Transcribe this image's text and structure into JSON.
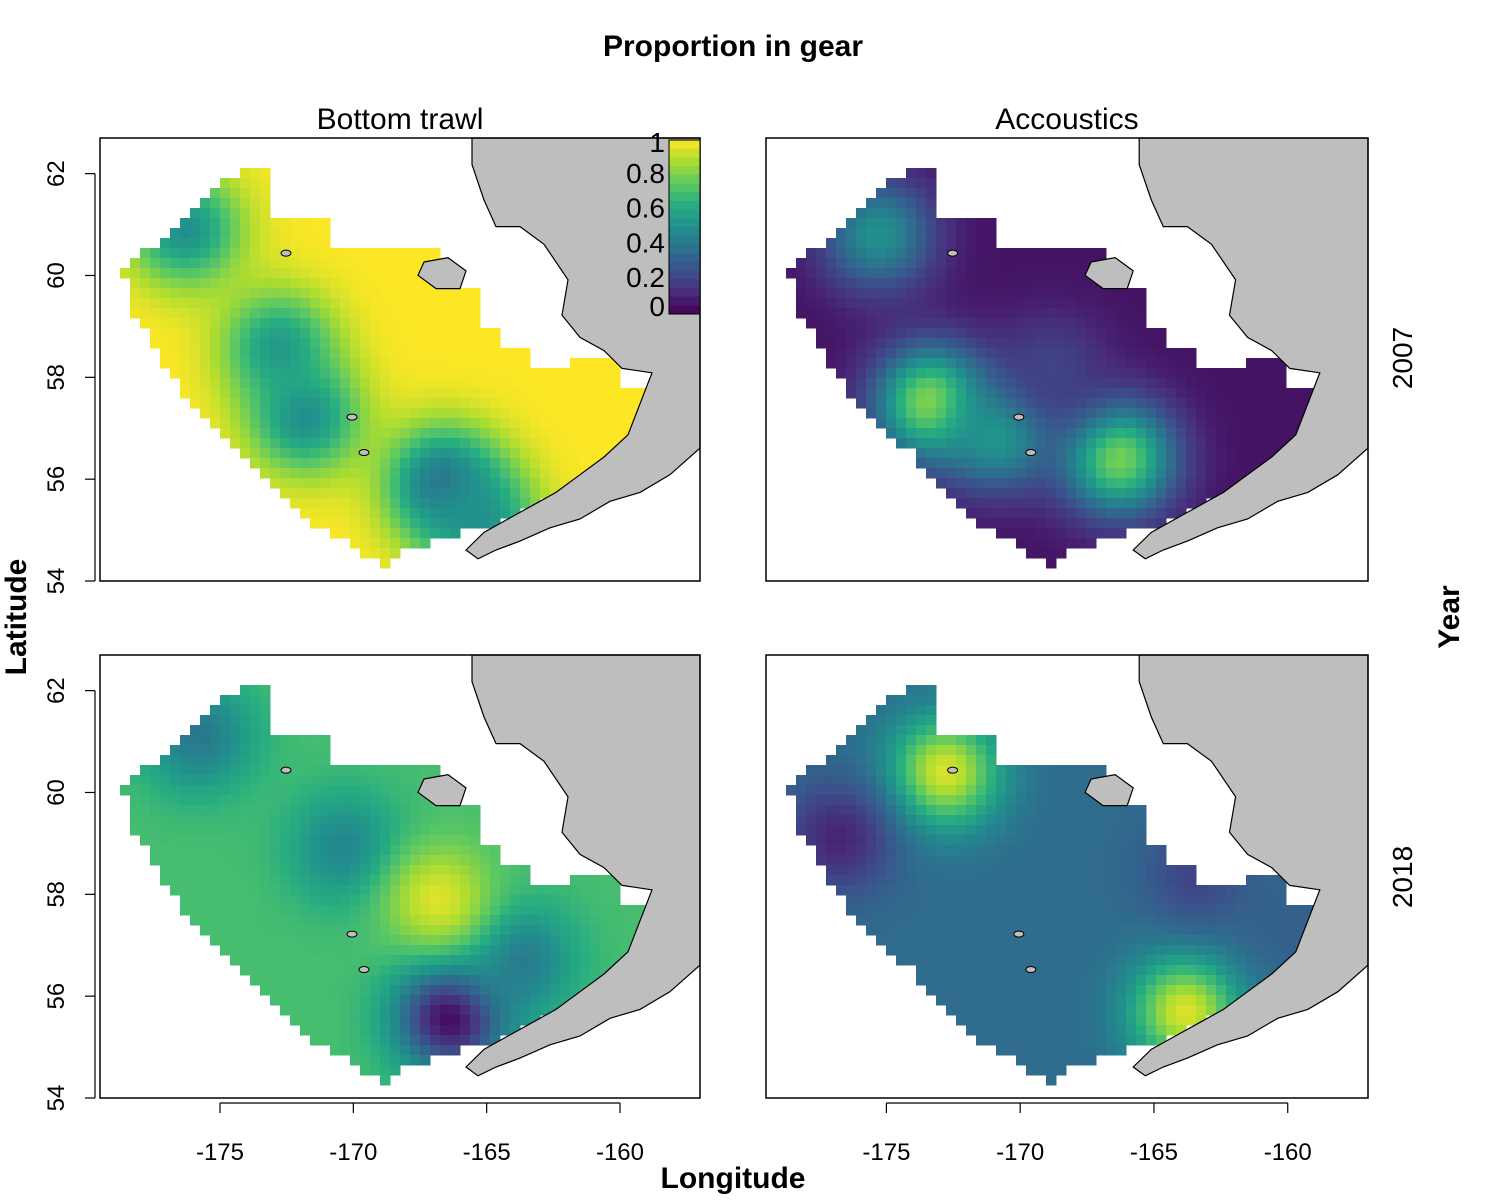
{
  "title": "Proportion in gear",
  "columns": [
    "Bottom trawl",
    "Accoustics"
  ],
  "rows": [
    "2007",
    "2018"
  ],
  "xlabel": "Longitude",
  "ylabel": "Latitude",
  "row_axis_label": "Year",
  "x_ticks": [
    "-175",
    "-170",
    "-165",
    "-160"
  ],
  "y_ticks": [
    "54",
    "56",
    "58",
    "60",
    "62"
  ],
  "legend_ticks": [
    "1",
    "0.8",
    "0.6",
    "0.4",
    "0.2",
    "0"
  ],
  "colors": {
    "land": "#bebebe",
    "palette": [
      "#440154",
      "#472d7b",
      "#3b528b",
      "#2c728e",
      "#21908d",
      "#27ad81",
      "#5cc863",
      "#aadc32",
      "#fde725"
    ]
  },
  "chart_data": {
    "type": "heatmap",
    "title": "Proportion in gear",
    "xlabel": "Longitude",
    "ylabel": "Latitude",
    "xlim": [
      -179.5,
      -157.0
    ],
    "ylim": [
      54,
      62.7
    ],
    "value_range": [
      0,
      1
    ],
    "colorbar_ticks": [
      0,
      0.2,
      0.4,
      0.6,
      0.8,
      1
    ],
    "panels": [
      {
        "column": "Bottom trawl",
        "year": "2007",
        "hotspots": [
          {
            "lon": -176.5,
            "lat": 61.0,
            "value": 0.5
          },
          {
            "lon": -173.0,
            "lat": 58.7,
            "value": 0.55
          },
          {
            "lon": -172.0,
            "lat": 57.3,
            "value": 0.5
          },
          {
            "lon": -166.8,
            "lat": 56.0,
            "value": 0.35
          },
          {
            "lon": -165.5,
            "lat": 55.3,
            "value": 0.5
          }
        ]
      },
      {
        "column": "Accoustics",
        "year": "2007",
        "hotspots": [
          {
            "lon": -175.5,
            "lat": 60.9,
            "value": 0.5
          },
          {
            "lon": -173.5,
            "lat": 57.6,
            "value": 0.85
          },
          {
            "lon": -166.5,
            "lat": 56.5,
            "value": 0.8
          },
          {
            "lon": -171.0,
            "lat": 57.0,
            "value": 0.55
          },
          {
            "lon": -169.0,
            "lat": 58.3,
            "value": 0.2
          }
        ]
      },
      {
        "column": "Bottom trawl",
        "year": "2018",
        "hotspots": [
          {
            "lon": -176.0,
            "lat": 61.2,
            "value": 0.4
          },
          {
            "lon": -170.5,
            "lat": 59.0,
            "value": 0.45
          },
          {
            "lon": -166.5,
            "lat": 55.7,
            "value": 0.0
          },
          {
            "lon": -164.0,
            "lat": 56.8,
            "value": 0.4
          },
          {
            "lon": -167.0,
            "lat": 58.0,
            "value": 0.95
          }
        ]
      },
      {
        "column": "Accoustics",
        "year": "2018",
        "hotspots": [
          {
            "lon": -173.0,
            "lat": 60.5,
            "value": 0.95
          },
          {
            "lon": -177.0,
            "lat": 59.2,
            "value": 0.1
          },
          {
            "lon": -164.0,
            "lat": 55.8,
            "value": 0.95
          },
          {
            "lon": -163.5,
            "lat": 58.5,
            "value": 0.2
          },
          {
            "lon": -160.0,
            "lat": 57.5,
            "value": 0.3
          }
        ]
      }
    ]
  }
}
